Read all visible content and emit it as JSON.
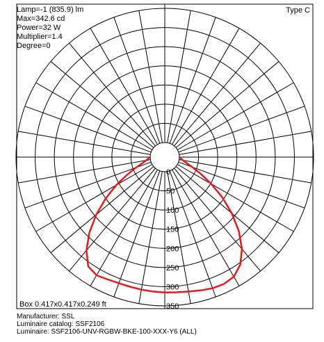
{
  "header": {
    "info_lines": [
      "Lamp=-1 (835.9) lm",
      "Max=342.6 cd",
      "Power=32 W",
      "Multiplier=1.4",
      "Degree=0"
    ],
    "type_label": "Type C"
  },
  "box_label": "Box 0.417x0.417x0.249 ft",
  "footer": {
    "manufacturer": "Manufacturer: SSL",
    "catalog": "Luminaire catalog: SSF2106",
    "luminaire": "Luminaire: SSF2106-UNV-RGBW-BKE-100-XXX-Y6 (ALL)"
  },
  "chart_data": {
    "type": "polar",
    "ring_labels": [
      "0",
      "50",
      "100",
      "150",
      "200",
      "250",
      "300",
      "350"
    ],
    "r_max": 350,
    "radial_step": 50,
    "angular_step_deg": 10,
    "curve_color": "#e31a1c",
    "series": [
      {
        "angles_deg": [
          0,
          5,
          10,
          15,
          20,
          25,
          30,
          35,
          40,
          45,
          50,
          55,
          60,
          65,
          70,
          75,
          80,
          85,
          90
        ],
        "right": [
          315,
          316,
          318,
          322,
          326,
          327,
          322,
          305,
          275,
          235,
          190,
          145,
          102,
          66,
          38,
          20,
          10,
          4,
          2
        ],
        "left": [
          315,
          314,
          313,
          312,
          312,
          314,
          318,
          310,
          280,
          240,
          195,
          150,
          108,
          70,
          42,
          22,
          11,
          5,
          2
        ]
      }
    ]
  }
}
